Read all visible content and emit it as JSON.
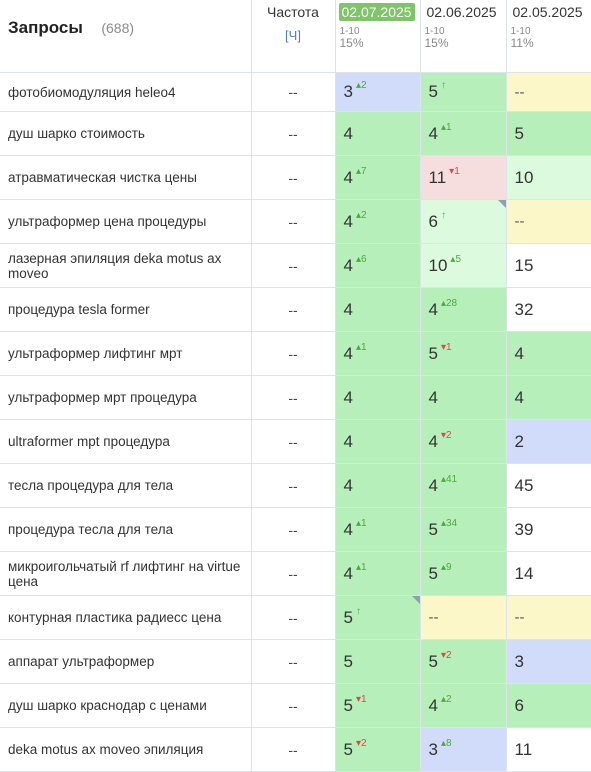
{
  "header": {
    "title": "Запросы",
    "count": "(688)",
    "freq_label": "Частота",
    "freq_mode": "[Ч]",
    "dates": [
      {
        "label": "02.07.2025",
        "range": "1-10",
        "pct": "15%",
        "active": true
      },
      {
        "label": "02.06.2025",
        "range": "1-10",
        "pct": "15%",
        "active": false
      },
      {
        "label": "02.05.2025",
        "range": "1-10",
        "pct": "11%",
        "active": false
      }
    ]
  },
  "colors": {
    "green": "#b6efb9",
    "light_green": "#dcfbde",
    "yellow": "#fbf7c8",
    "blue": "#d1dcfa",
    "pink": "#f7dede",
    "active_date": "#7dc568",
    "delta_up": "#4aab39",
    "delta_down": "#e04646"
  },
  "rows": [
    {
      "query": "фотобиомодуляция heleo4",
      "freq": "--",
      "cells": [
        {
          "v": "3",
          "d": "2",
          "dir": "up",
          "bg": "blue"
        },
        {
          "v": "5",
          "d": "↑",
          "dir": "up",
          "bg": "green"
        },
        {
          "v": "--",
          "d": "",
          "dir": "",
          "bg": "yellow"
        }
      ]
    },
    {
      "query": "душ шарко стоимость",
      "freq": "--",
      "cells": [
        {
          "v": "4",
          "d": "",
          "dir": "",
          "bg": "green"
        },
        {
          "v": "4",
          "d": "1",
          "dir": "up",
          "bg": "green"
        },
        {
          "v": "5",
          "d": "",
          "dir": "",
          "bg": "green"
        }
      ]
    },
    {
      "query": "атравматическая чистка цены",
      "freq": "--",
      "cells": [
        {
          "v": "4",
          "d": "7",
          "dir": "up",
          "bg": "green"
        },
        {
          "v": "11",
          "d": "1",
          "dir": "down",
          "bg": "pink"
        },
        {
          "v": "10",
          "d": "",
          "dir": "",
          "bg": "lgreen"
        }
      ]
    },
    {
      "query": "ультраформер цена процедуры",
      "freq": "--",
      "cells": [
        {
          "v": "4",
          "d": "2",
          "dir": "up",
          "bg": "green"
        },
        {
          "v": "6",
          "d": "↑",
          "dir": "up",
          "bg": "lgreen",
          "corner": true
        },
        {
          "v": "--",
          "d": "",
          "dir": "",
          "bg": "yellow"
        }
      ]
    },
    {
      "query": "лазерная эпиляция deka motus ax moveo",
      "freq": "--",
      "cells": [
        {
          "v": "4",
          "d": "6",
          "dir": "up",
          "bg": "green"
        },
        {
          "v": "10",
          "d": "5",
          "dir": "up",
          "bg": "lgreen"
        },
        {
          "v": "15",
          "d": "",
          "dir": "",
          "bg": "white"
        }
      ]
    },
    {
      "query": "процедура tesla former",
      "freq": "--",
      "cells": [
        {
          "v": "4",
          "d": "",
          "dir": "",
          "bg": "green"
        },
        {
          "v": "4",
          "d": "28",
          "dir": "up",
          "bg": "green"
        },
        {
          "v": "32",
          "d": "",
          "dir": "",
          "bg": "white"
        }
      ]
    },
    {
      "query": "ультраформер лифтинг мрт",
      "freq": "--",
      "cells": [
        {
          "v": "4",
          "d": "1",
          "dir": "up",
          "bg": "green"
        },
        {
          "v": "5",
          "d": "1",
          "dir": "down",
          "bg": "green"
        },
        {
          "v": "4",
          "d": "",
          "dir": "",
          "bg": "green"
        }
      ]
    },
    {
      "query": "ультраформер мрт процедура",
      "freq": "--",
      "cells": [
        {
          "v": "4",
          "d": "",
          "dir": "",
          "bg": "green"
        },
        {
          "v": "4",
          "d": "",
          "dir": "",
          "bg": "green"
        },
        {
          "v": "4",
          "d": "",
          "dir": "",
          "bg": "green"
        }
      ]
    },
    {
      "query": "ultraformer mpt процедура",
      "freq": "--",
      "cells": [
        {
          "v": "4",
          "d": "",
          "dir": "",
          "bg": "green"
        },
        {
          "v": "4",
          "d": "2",
          "dir": "down",
          "bg": "green"
        },
        {
          "v": "2",
          "d": "",
          "dir": "",
          "bg": "blue"
        }
      ]
    },
    {
      "query": "тесла процедура для тела",
      "freq": "--",
      "cells": [
        {
          "v": "4",
          "d": "",
          "dir": "",
          "bg": "green"
        },
        {
          "v": "4",
          "d": "41",
          "dir": "up",
          "bg": "green"
        },
        {
          "v": "45",
          "d": "",
          "dir": "",
          "bg": "white"
        }
      ]
    },
    {
      "query": "процедура тесла для тела",
      "freq": "--",
      "cells": [
        {
          "v": "4",
          "d": "1",
          "dir": "up",
          "bg": "green"
        },
        {
          "v": "5",
          "d": "34",
          "dir": "up",
          "bg": "green"
        },
        {
          "v": "39",
          "d": "",
          "dir": "",
          "bg": "white"
        }
      ]
    },
    {
      "query": "микроигольчатый rf лифтинг на virtue цена",
      "freq": "--",
      "cells": [
        {
          "v": "4",
          "d": "1",
          "dir": "up",
          "bg": "green"
        },
        {
          "v": "5",
          "d": "9",
          "dir": "up",
          "bg": "green"
        },
        {
          "v": "14",
          "d": "",
          "dir": "",
          "bg": "white"
        }
      ]
    },
    {
      "query": "контурная пластика радиесс цена",
      "freq": "--",
      "cells": [
        {
          "v": "5",
          "d": "↑",
          "dir": "up",
          "bg": "green",
          "corner": true
        },
        {
          "v": "--",
          "d": "",
          "dir": "",
          "bg": "yellow"
        },
        {
          "v": "--",
          "d": "",
          "dir": "",
          "bg": "yellow"
        }
      ]
    },
    {
      "query": "аппарат ультраформер",
      "freq": "--",
      "cells": [
        {
          "v": "5",
          "d": "",
          "dir": "",
          "bg": "green"
        },
        {
          "v": "5",
          "d": "2",
          "dir": "down",
          "bg": "green"
        },
        {
          "v": "3",
          "d": "",
          "dir": "",
          "bg": "blue"
        }
      ]
    },
    {
      "query": "душ шарко краснодар с ценами",
      "freq": "--",
      "cells": [
        {
          "v": "5",
          "d": "1",
          "dir": "down",
          "bg": "green"
        },
        {
          "v": "4",
          "d": "2",
          "dir": "up",
          "bg": "green"
        },
        {
          "v": "6",
          "d": "",
          "dir": "",
          "bg": "green"
        }
      ]
    },
    {
      "query": "deka motus ax moveo эпиляция",
      "freq": "--",
      "cells": [
        {
          "v": "5",
          "d": "2",
          "dir": "down",
          "bg": "green"
        },
        {
          "v": "3",
          "d": "8",
          "dir": "up",
          "bg": "blue"
        },
        {
          "v": "11",
          "d": "",
          "dir": "",
          "bg": "white"
        }
      ]
    }
  ]
}
